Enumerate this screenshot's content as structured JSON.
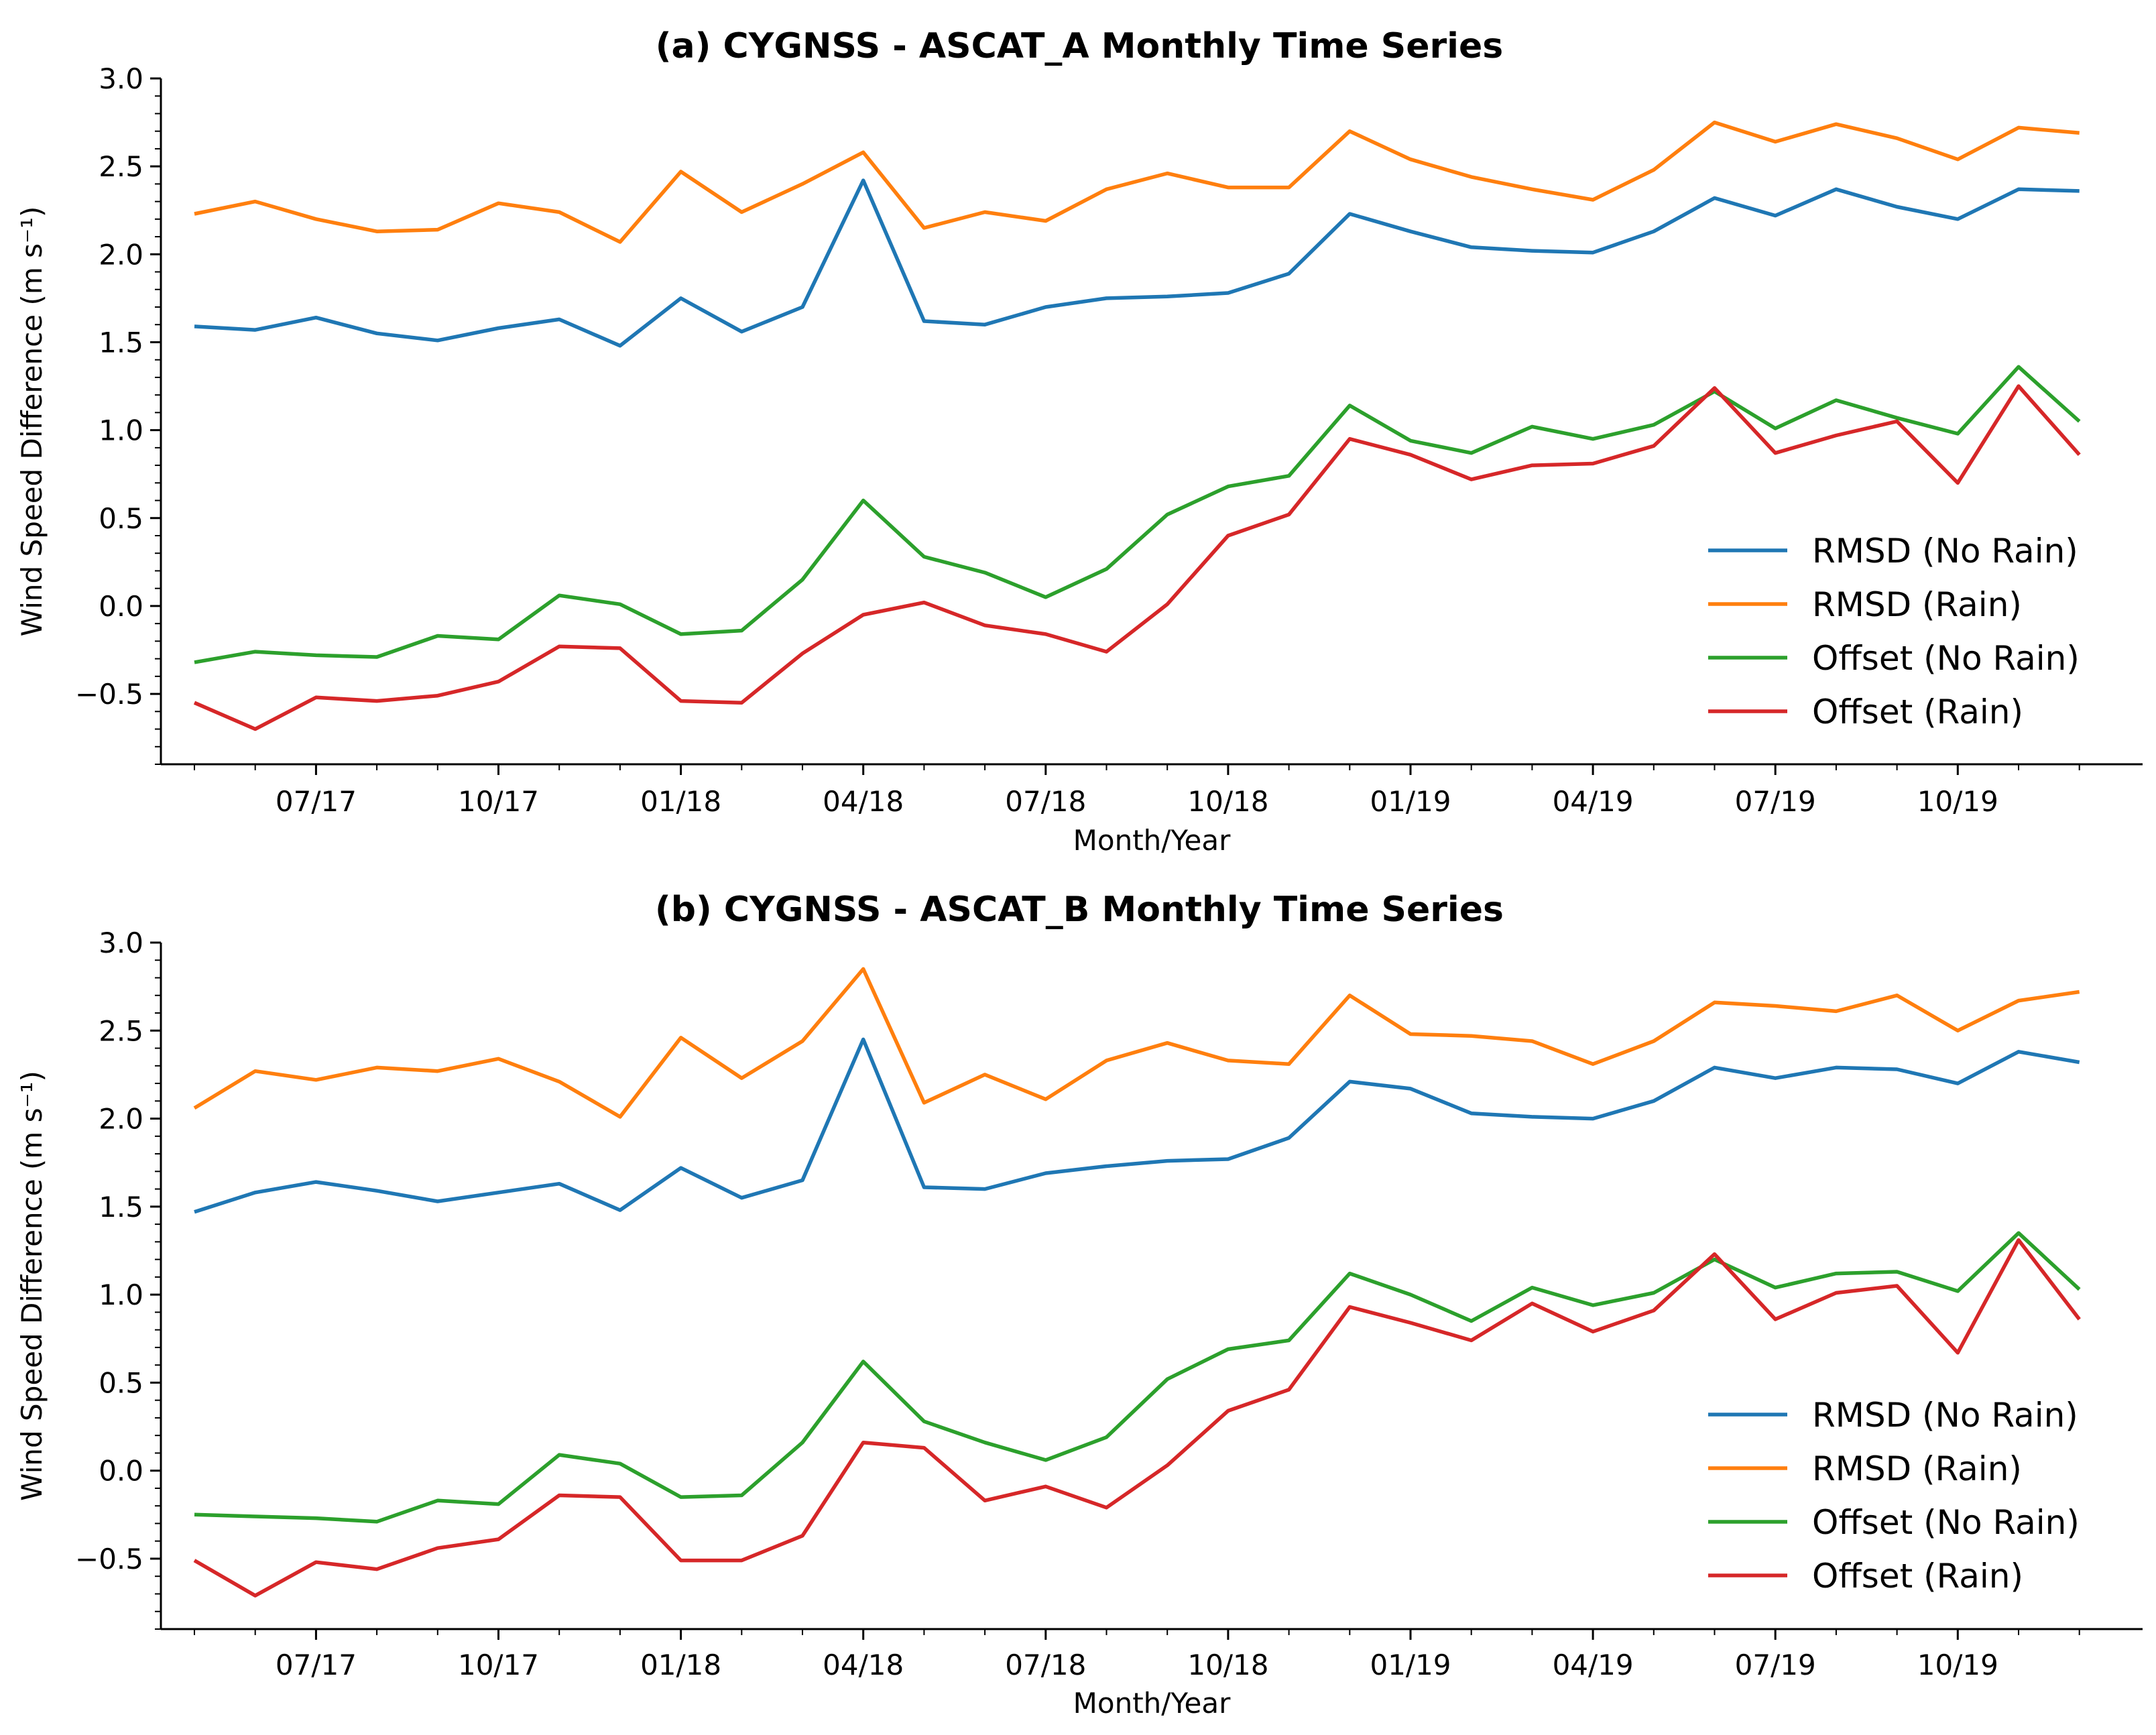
{
  "chart_data": [
    {
      "type": "line",
      "title": "(a) CYGNSS - ASCAT_A Monthly Time Series",
      "xlabel": "Month/Year",
      "ylabel": "Wind Speed Difference (m s⁻¹)",
      "ylim": [
        -0.9,
        3.0
      ],
      "yticks": [
        "−0.5",
        "0.0",
        "0.5",
        "1.0",
        "1.5",
        "2.0",
        "2.5",
        "3.0"
      ],
      "x_tick_labels": [
        "07/17",
        "10/17",
        "01/18",
        "04/18",
        "07/18",
        "10/18",
        "01/19",
        "04/19",
        "07/19",
        "10/19"
      ],
      "legend_position": "lower-right",
      "categories": [
        "05/17",
        "06/17",
        "07/17",
        "08/17",
        "09/17",
        "10/17",
        "11/17",
        "12/17",
        "01/18",
        "02/18",
        "03/18",
        "04/18",
        "05/18",
        "06/18",
        "07/18",
        "08/18",
        "09/18",
        "10/18",
        "11/18",
        "12/18",
        "01/19",
        "02/19",
        "03/19",
        "04/19",
        "05/19",
        "06/19",
        "07/19",
        "08/19",
        "09/19",
        "10/19",
        "11/19",
        "12/19"
      ],
      "series": [
        {
          "name": "RMSD (No Rain)",
          "color": "#1f77b4",
          "values": [
            1.59,
            1.57,
            1.64,
            1.55,
            1.51,
            1.58,
            1.63,
            1.48,
            1.75,
            1.56,
            1.7,
            2.42,
            1.62,
            1.6,
            1.7,
            1.75,
            1.76,
            1.78,
            1.89,
            2.23,
            2.13,
            2.04,
            2.02,
            2.01,
            2.13,
            2.32,
            2.22,
            2.37,
            2.27,
            2.2,
            2.37,
            2.36
          ]
        },
        {
          "name": "RMSD (Rain)",
          "color": "#ff7f0e",
          "values": [
            2.23,
            2.3,
            2.2,
            2.13,
            2.14,
            2.29,
            2.24,
            2.07,
            2.47,
            2.24,
            2.4,
            2.58,
            2.15,
            2.24,
            2.19,
            2.37,
            2.46,
            2.38,
            2.38,
            2.7,
            2.54,
            2.44,
            2.37,
            2.31,
            2.48,
            2.75,
            2.64,
            2.74,
            2.66,
            2.54,
            2.72,
            2.69
          ]
        },
        {
          "name": "Offset (No Rain)",
          "color": "#2ca02c",
          "values": [
            -0.32,
            -0.26,
            -0.28,
            -0.29,
            -0.17,
            -0.19,
            0.06,
            0.01,
            -0.16,
            -0.14,
            0.15,
            0.6,
            0.28,
            0.19,
            0.05,
            0.21,
            0.52,
            0.68,
            0.74,
            1.14,
            0.94,
            0.87,
            1.02,
            0.95,
            1.03,
            1.22,
            1.01,
            1.17,
            1.07,
            0.98,
            1.36,
            1.05
          ]
        },
        {
          "name": "Offset (Rain)",
          "color": "#d62728",
          "values": [
            -0.55,
            -0.7,
            -0.52,
            -0.54,
            -0.51,
            -0.43,
            -0.23,
            -0.24,
            -0.54,
            -0.55,
            -0.27,
            -0.05,
            0.02,
            -0.11,
            -0.16,
            -0.26,
            0.01,
            0.4,
            0.52,
            0.95,
            0.86,
            0.72,
            0.8,
            0.81,
            0.91,
            1.24,
            0.87,
            0.97,
            1.05,
            0.7,
            1.25,
            0.86
          ]
        }
      ]
    },
    {
      "type": "line",
      "title": "(b) CYGNSS - ASCAT_B Monthly Time Series",
      "xlabel": "Month/Year",
      "ylabel": "Wind Speed Difference (m s⁻¹)",
      "ylim": [
        -0.9,
        3.0
      ],
      "yticks": [
        "−0.5",
        "0.0",
        "0.5",
        "1.0",
        "1.5",
        "2.0",
        "2.5",
        "3.0"
      ],
      "x_tick_labels": [
        "07/17",
        "10/17",
        "01/18",
        "04/18",
        "07/18",
        "10/18",
        "01/19",
        "04/19",
        "07/19",
        "10/19"
      ],
      "legend_position": "lower-right",
      "categories": [
        "05/17",
        "06/17",
        "07/17",
        "08/17",
        "09/17",
        "10/17",
        "11/17",
        "12/17",
        "01/18",
        "02/18",
        "03/18",
        "04/18",
        "05/18",
        "06/18",
        "07/18",
        "08/18",
        "09/18",
        "10/18",
        "11/18",
        "12/18",
        "01/19",
        "02/19",
        "03/19",
        "04/19",
        "05/19",
        "06/19",
        "07/19",
        "08/19",
        "09/19",
        "10/19",
        "11/19",
        "12/19"
      ],
      "series": [
        {
          "name": "RMSD (No Rain)",
          "color": "#1f77b4",
          "values": [
            1.47,
            1.58,
            1.64,
            1.59,
            1.53,
            1.58,
            1.63,
            1.48,
            1.72,
            1.55,
            1.65,
            2.45,
            1.61,
            1.6,
            1.69,
            1.73,
            1.76,
            1.77,
            1.89,
            2.21,
            2.17,
            2.03,
            2.01,
            2.0,
            2.1,
            2.29,
            2.23,
            2.29,
            2.28,
            2.2,
            2.38,
            2.32
          ]
        },
        {
          "name": "RMSD (Rain)",
          "color": "#ff7f0e",
          "values": [
            2.06,
            2.27,
            2.22,
            2.29,
            2.27,
            2.34,
            2.21,
            2.01,
            2.46,
            2.23,
            2.44,
            2.85,
            2.09,
            2.25,
            2.11,
            2.33,
            2.43,
            2.33,
            2.31,
            2.7,
            2.48,
            2.47,
            2.44,
            2.31,
            2.44,
            2.66,
            2.64,
            2.61,
            2.7,
            2.5,
            2.67,
            2.72
          ]
        },
        {
          "name": "Offset (No Rain)",
          "color": "#2ca02c",
          "values": [
            -0.25,
            -0.26,
            -0.27,
            -0.29,
            -0.17,
            -0.19,
            0.09,
            0.04,
            -0.15,
            -0.14,
            0.16,
            0.62,
            0.28,
            0.16,
            0.06,
            0.19,
            0.52,
            0.69,
            0.74,
            1.12,
            1.0,
            0.85,
            1.04,
            0.94,
            1.01,
            1.2,
            1.04,
            1.12,
            1.13,
            1.02,
            1.35,
            1.03
          ]
        },
        {
          "name": "Offset (Rain)",
          "color": "#d62728",
          "values": [
            -0.51,
            -0.71,
            -0.52,
            -0.56,
            -0.44,
            -0.39,
            -0.14,
            -0.15,
            -0.51,
            -0.51,
            -0.37,
            0.16,
            0.13,
            -0.17,
            -0.09,
            -0.21,
            0.03,
            0.34,
            0.46,
            0.93,
            0.84,
            0.74,
            0.95,
            0.79,
            0.91,
            1.23,
            0.86,
            1.01,
            1.05,
            0.67,
            1.31,
            0.86
          ]
        }
      ]
    }
  ]
}
